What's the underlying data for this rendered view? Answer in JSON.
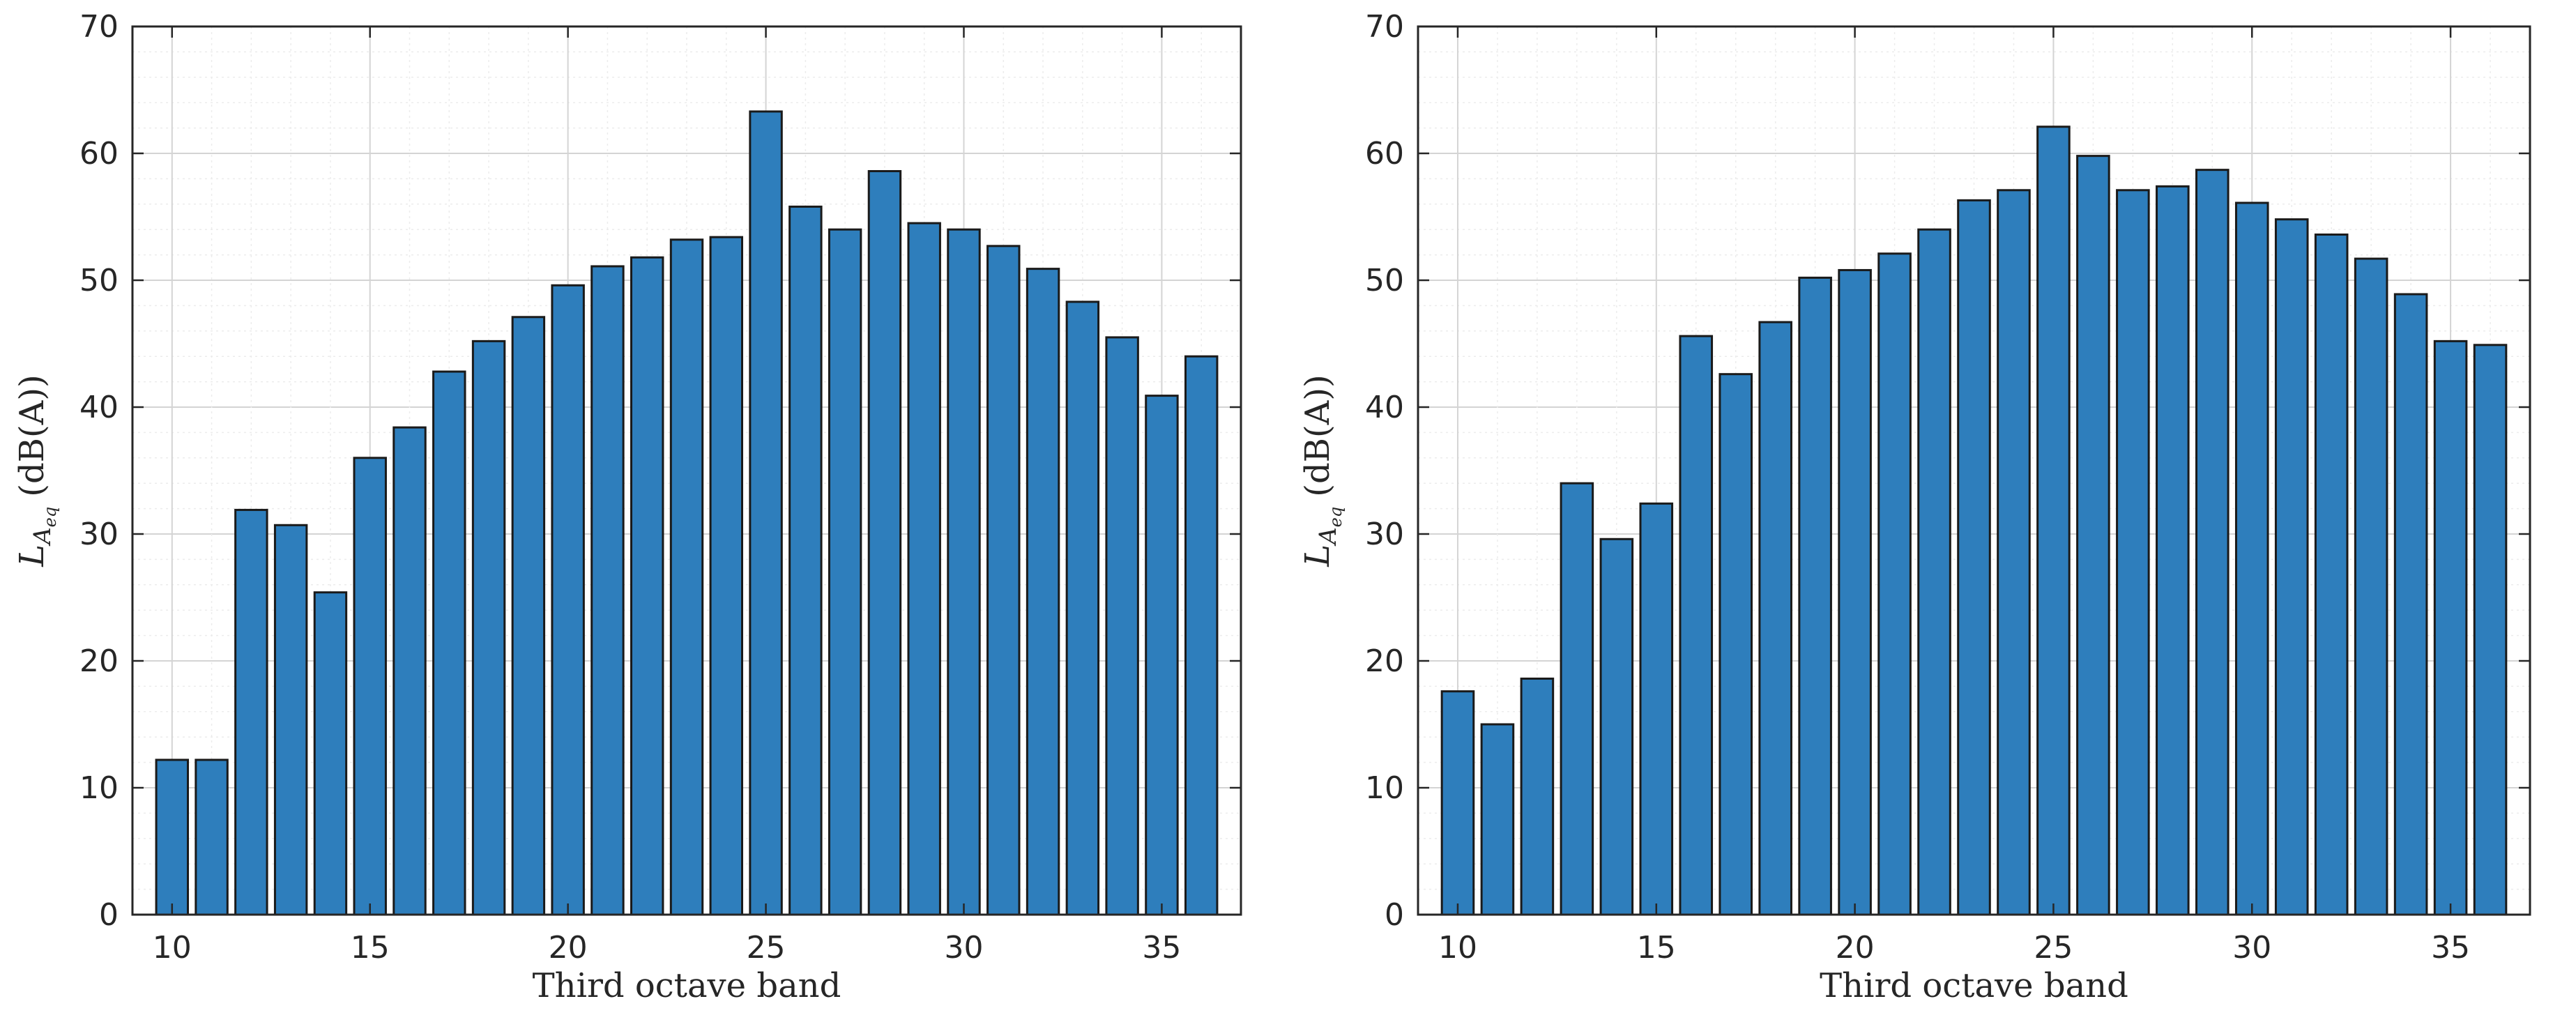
{
  "chart_data": [
    {
      "type": "bar",
      "x": [
        10,
        11,
        12,
        13,
        14,
        15,
        16,
        17,
        18,
        19,
        20,
        21,
        22,
        23,
        24,
        25,
        26,
        27,
        28,
        29,
        30,
        31,
        32,
        33,
        34,
        35,
        36
      ],
      "values": [
        12.2,
        12.2,
        31.9,
        30.7,
        25.4,
        36.0,
        38.4,
        42.8,
        45.2,
        47.1,
        49.6,
        51.1,
        51.8,
        53.2,
        53.4,
        63.3,
        55.8,
        54.0,
        58.6,
        54.5,
        54.0,
        52.7,
        50.9,
        48.3,
        45.5,
        40.9,
        44.0
      ],
      "xlabel": "Third octave band",
      "ylabel": "L_{A_{eq}} (dB(A))",
      "ylabel_main": "L",
      "ylabel_sub": "A",
      "ylabel_subsub": "eq",
      "ylabel_units": "(dB(A))",
      "xlim": [
        9,
        37
      ],
      "ylim": [
        0,
        70
      ],
      "xticks": [
        10,
        15,
        20,
        25,
        30,
        35
      ],
      "yticks": [
        0,
        10,
        20,
        30,
        40,
        50,
        60,
        70
      ],
      "grid": true,
      "bar_color": "#2e7ebc"
    },
    {
      "type": "bar",
      "x": [
        10,
        11,
        12,
        13,
        14,
        15,
        16,
        17,
        18,
        19,
        20,
        21,
        22,
        23,
        24,
        25,
        26,
        27,
        28,
        29,
        30,
        31,
        32,
        33,
        34,
        35,
        36
      ],
      "values": [
        17.6,
        15.0,
        18.6,
        34.0,
        29.6,
        32.4,
        45.6,
        42.6,
        46.7,
        50.2,
        50.8,
        52.1,
        54.0,
        56.3,
        57.1,
        62.1,
        59.8,
        57.1,
        57.4,
        58.7,
        56.1,
        54.8,
        53.6,
        51.7,
        48.9,
        45.2,
        44.9
      ],
      "xlabel": "Third octave band",
      "ylabel": "L_{A_{eq}} (dB(A))",
      "ylabel_main": "L",
      "ylabel_sub": "A",
      "ylabel_subsub": "eq",
      "ylabel_units": "(dB(A))",
      "xlim": [
        9,
        37
      ],
      "ylim": [
        0,
        70
      ],
      "xticks": [
        10,
        15,
        20,
        25,
        30,
        35
      ],
      "yticks": [
        0,
        10,
        20,
        30,
        40,
        50,
        60,
        70
      ],
      "grid": true,
      "bar_color": "#2e7ebc"
    }
  ]
}
